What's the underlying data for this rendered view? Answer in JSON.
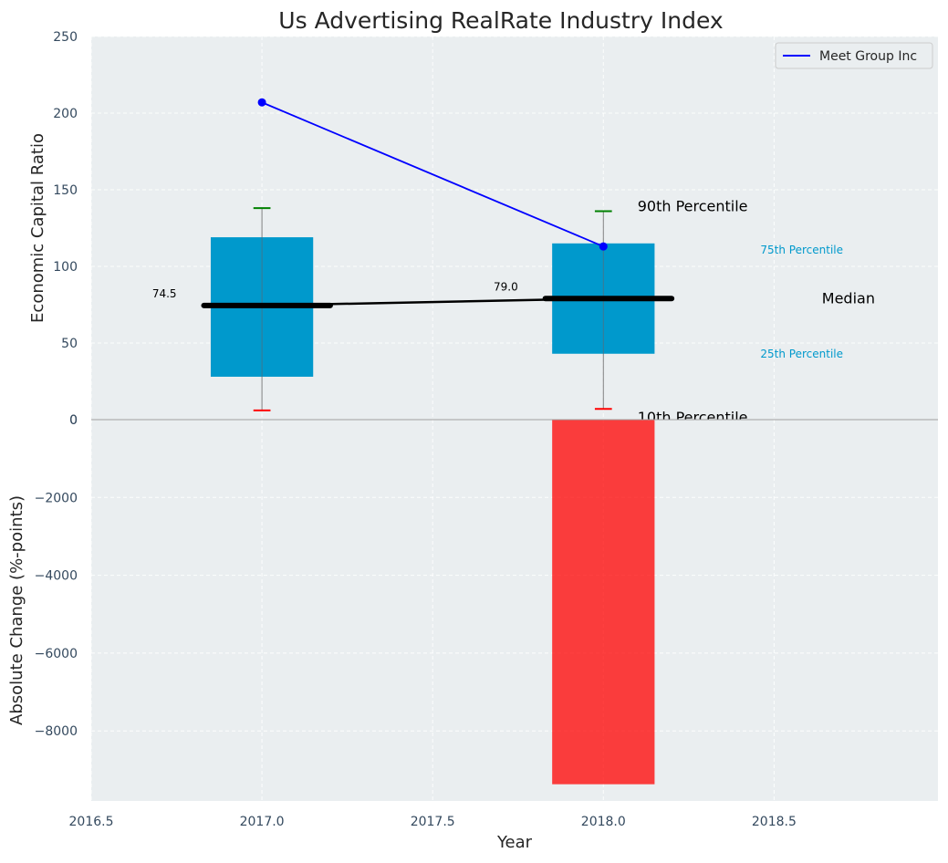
{
  "title": "Us Advertising RealRate Industry Index",
  "chart_data": [
    {
      "type": "box",
      "xlabel": "",
      "ylabel": "Economic Capital Ratio",
      "xlim": [
        2016.5,
        2018.98
      ],
      "ylim": [
        0,
        250
      ],
      "yticks": [
        0,
        50,
        100,
        150,
        200,
        250
      ],
      "grid": true,
      "years": [
        2017,
        2018
      ],
      "boxes": [
        {
          "year": 2017,
          "p10": 6,
          "p25": 28,
          "median": 74.5,
          "p75": 119,
          "p90": 138,
          "median_label": "74.5"
        },
        {
          "year": 2018,
          "p10": 7,
          "p25": 43,
          "median": 79.0,
          "p75": 115,
          "p90": 136,
          "median_label": "79.0"
        }
      ],
      "series": [
        {
          "name": "Meet Group Inc",
          "color": "#0000ff",
          "x": [
            2017,
            2018
          ],
          "values": [
            207,
            113
          ]
        }
      ],
      "median_line": {
        "x": [
          2017,
          2018
        ],
        "values": [
          74.5,
          79.0
        ],
        "color": "#000000"
      },
      "legend": {
        "position": "top-right",
        "entries": [
          "Meet Group Inc"
        ]
      },
      "annotations": {
        "p90": "90th Percentile",
        "p75": "75th Percentile",
        "median": "Median",
        "p25": "25th Percentile",
        "p10": "10th Percentile"
      }
    },
    {
      "type": "bar",
      "xlabel": "Year",
      "ylabel": "Absolute Change (%-points)",
      "xlim": [
        2016.5,
        2018.98
      ],
      "ylim": [
        -9800,
        0
      ],
      "yticks": [
        0,
        -2000,
        -4000,
        -6000,
        -8000
      ],
      "ytick_labels": [
        "0",
        "−2000",
        "−4000",
        "−6000",
        "−8000"
      ],
      "xticks": [
        2016.5,
        2017.0,
        2017.5,
        2018.0,
        2018.5
      ],
      "xtick_labels": [
        "2016.5",
        "2017.0",
        "2017.5",
        "2018.0",
        "2018.5"
      ],
      "grid": true,
      "categories": [
        2018
      ],
      "values": [
        -9370
      ],
      "color": "#ff0000"
    }
  ],
  "colors": {
    "background": "#eaeef0",
    "box": "#0099cc",
    "p90_cap": "#008000",
    "p10_cap": "#ff0000",
    "bar": "#ff0000"
  }
}
